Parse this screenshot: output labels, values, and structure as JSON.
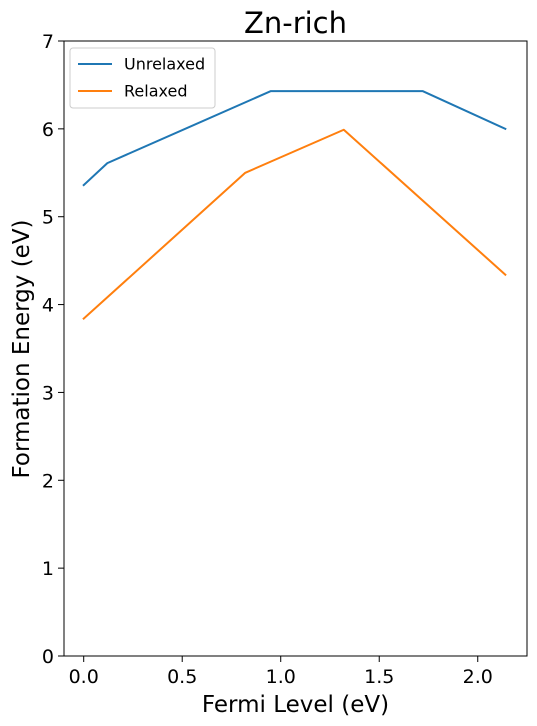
{
  "chart_data": {
    "type": "line",
    "title": "Zn-rich",
    "xlabel": "Fermi Level (eV)",
    "ylabel": "Formation Energy (eV)",
    "xlim": [
      -0.1,
      2.25
    ],
    "ylim": [
      0,
      7
    ],
    "xticks": [
      "0.0",
      "0.5",
      "1.0",
      "1.5",
      "2.0"
    ],
    "yticks": [
      "0",
      "1",
      "2",
      "3",
      "4",
      "5",
      "6",
      "7"
    ],
    "grid": false,
    "legend_position": "top-left",
    "series": [
      {
        "name": "Unrelaxed",
        "color": "#1f77b4",
        "points": [
          [
            0.0,
            5.36
          ],
          [
            0.12,
            5.61
          ],
          [
            0.95,
            6.43
          ],
          [
            1.72,
            6.43
          ],
          [
            2.14,
            6.0
          ]
        ]
      },
      {
        "name": "Relaxed",
        "color": "#ff7f0e",
        "points": [
          [
            0.0,
            3.84
          ],
          [
            0.82,
            5.5
          ],
          [
            1.32,
            5.99
          ],
          [
            2.14,
            4.34
          ]
        ]
      }
    ]
  }
}
